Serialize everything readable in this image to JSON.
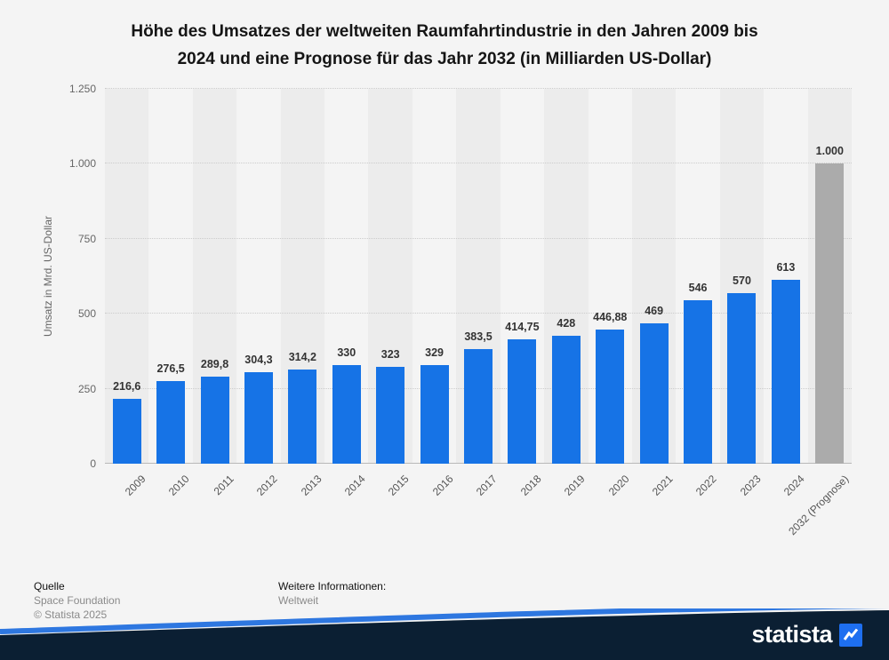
{
  "title_lines": [
    "Höhe des Umsatzes der weltweiten Raumfahrtindustrie in den Jahren 2009 bis",
    "2024 und eine Prognose für das Jahr 2032 (in Milliarden US-Dollar)"
  ],
  "chart_data": {
    "type": "bar",
    "title": "Höhe des Umsatzes der weltweiten Raumfahrtindustrie in den Jahren 2009 bis 2024 und eine Prognose für das Jahr 2032 (in Milliarden US-Dollar)",
    "ylabel": "Umsatz in Mrd. US-Dollar",
    "xlabel": "",
    "ylim": [
      0,
      1250
    ],
    "ytick_values": [
      0,
      250,
      500,
      750,
      1000,
      1250
    ],
    "ytick_labels": [
      "0",
      "250",
      "500",
      "750",
      "1.000",
      "1.250"
    ],
    "grid": true,
    "legend_position": "none",
    "categories": [
      "2009",
      "2010",
      "2011",
      "2012",
      "2013",
      "2014",
      "2015",
      "2016",
      "2017",
      "2018",
      "2019",
      "2020",
      "2021",
      "2022",
      "2023",
      "2024",
      "2032 (Prognose)"
    ],
    "values": [
      216.6,
      276.5,
      289.8,
      304.3,
      314.2,
      330,
      323,
      329,
      383.5,
      414.75,
      428,
      446.88,
      469,
      546,
      570,
      613,
      1000
    ],
    "value_labels": [
      "216,6",
      "276,5",
      "289,8",
      "304,3",
      "314,2",
      "330",
      "323",
      "329",
      "383,5",
      "414,75",
      "428",
      "446,88",
      "469",
      "546",
      "570",
      "613",
      "1.000"
    ],
    "bar_color": "#1673e6",
    "forecast_bar_color": "#ababab",
    "forecast_index": 16
  },
  "footer": {
    "source_label": "Quelle",
    "source": "Space Foundation",
    "copyright": "© Statista 2025",
    "info_label": "Weitere Informationen:",
    "info": "Weltweit"
  },
  "branding": {
    "logo_text": "statista",
    "band_color": "#0b1f33",
    "accent_color": "#2e77e0",
    "logo_square_color": "#1e6ff0"
  }
}
